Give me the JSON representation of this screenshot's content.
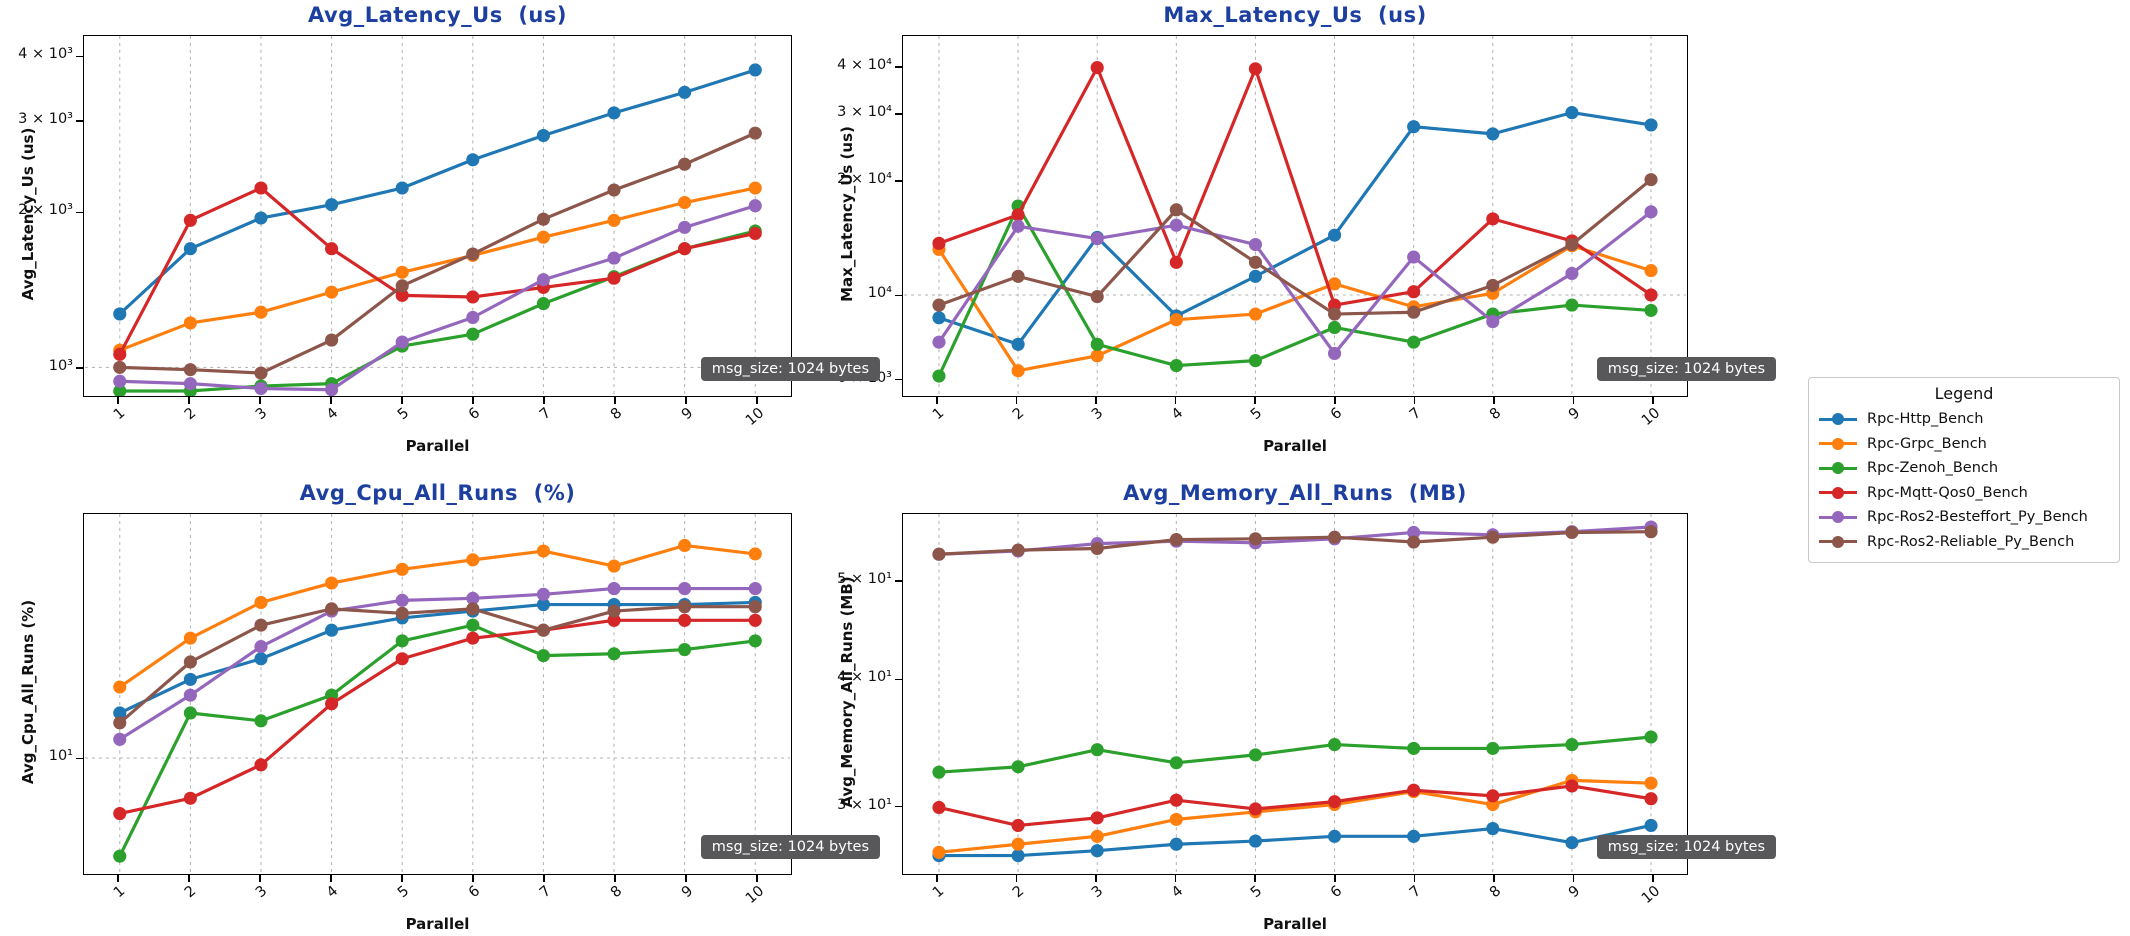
{
  "figure": {
    "background": "#ffffff",
    "title_color": "#1c3fa0"
  },
  "x_axis": {
    "label": "Parallel",
    "ticks": [
      "1",
      "2",
      "3",
      "4",
      "5",
      "6",
      "7",
      "8",
      "9",
      "10"
    ]
  },
  "annotation": {
    "text": "msg_size: 1024 bytes",
    "bg": "#58585a",
    "fg": "#ffffff"
  },
  "legend": {
    "title": "Legend",
    "entries": [
      {
        "label": "Rpc-Http_Bench",
        "color": "#1f77b4"
      },
      {
        "label": "Rpc-Grpc_Bench",
        "color": "#ff7f0e"
      },
      {
        "label": "Rpc-Zenoh_Bench",
        "color": "#2ca02c"
      },
      {
        "label": "Rpc-Mqtt-Qos0_Bench",
        "color": "#d62728"
      },
      {
        "label": "Rpc-Ros2-Besteffort_Py_Bench",
        "color": "#9467bd"
      },
      {
        "label": "Rpc-Ros2-Reliable_Py_Bench",
        "color": "#8c564b"
      }
    ]
  },
  "chart_data": [
    {
      "type": "line",
      "title": "Avg_Latency_Us  (us)",
      "ylabel": "Avg_Latency_Us (us)",
      "xlabel": "Parallel",
      "annotation": "msg_size: 1024 bytes",
      "yscale": "log",
      "ylim": [
        880,
        4400
      ],
      "grid": "x-major and decade y, dashed",
      "yticks": [
        {
          "value": 4000,
          "label": "4 × 10³",
          "grid": false
        },
        {
          "value": 3000,
          "label": "3 × 10³",
          "grid": false
        },
        {
          "value": 2000,
          "label": "2 × 10³",
          "grid": false
        },
        {
          "value": 1000,
          "label": "10³",
          "grid": true
        }
      ],
      "x": [
        1,
        2,
        3,
        4,
        5,
        6,
        7,
        8,
        9,
        10
      ],
      "series": [
        {
          "name": "Rpc-Http_Bench",
          "color": "#1f77b4",
          "values": [
            1270,
            1700,
            1950,
            2070,
            2230,
            2530,
            2820,
            3120,
            3420,
            3780
          ]
        },
        {
          "name": "Rpc-Grpc_Bench",
          "color": "#ff7f0e",
          "values": [
            1080,
            1220,
            1280,
            1400,
            1530,
            1650,
            1790,
            1930,
            2090,
            2230
          ]
        },
        {
          "name": "Rpc-Zenoh_Bench",
          "color": "#2ca02c",
          "values": [
            900,
            900,
            920,
            930,
            1100,
            1160,
            1330,
            1500,
            1700,
            1840
          ]
        },
        {
          "name": "Rpc-Mqtt-Qos0_Bench",
          "color": "#d62728",
          "values": [
            1060,
            1930,
            2230,
            1700,
            1380,
            1370,
            1430,
            1490,
            1700,
            1820
          ]
        },
        {
          "name": "Rpc-Ros2-Besteffort_Py_Bench",
          "color": "#9467bd",
          "values": [
            940,
            930,
            910,
            905,
            1120,
            1250,
            1480,
            1630,
            1870,
            2060
          ]
        },
        {
          "name": "Rpc-Ros2-Reliable_Py_Bench",
          "color": "#8c564b",
          "values": [
            1000,
            990,
            975,
            1130,
            1440,
            1660,
            1940,
            2210,
            2480,
            2850
          ]
        }
      ]
    },
    {
      "type": "line",
      "title": "Max_Latency_Us  (us)",
      "ylabel": "Max_Latency_Us (us)",
      "xlabel": "Parallel",
      "annotation": "msg_size: 1024 bytes",
      "yscale": "log",
      "ylim": [
        5400,
        48500
      ],
      "grid": "x-major and decade y, dashed",
      "yticks": [
        {
          "value": 40000,
          "label": "4 × 10⁴",
          "grid": false
        },
        {
          "value": 30000,
          "label": "3 × 10⁴",
          "grid": false
        },
        {
          "value": 20000,
          "label": "2 × 10⁴",
          "grid": false
        },
        {
          "value": 10000,
          "label": "10⁴",
          "grid": true
        },
        {
          "value": 6000,
          "label": "6 × 10³",
          "grid": false
        }
      ],
      "x": [
        1,
        2,
        3,
        4,
        5,
        6,
        7,
        8,
        9,
        10
      ],
      "series": [
        {
          "name": "Rpc-Http_Bench",
          "color": "#1f77b4",
          "values": [
            8700,
            7400,
            14200,
            8800,
            11200,
            14400,
            27900,
            26700,
            30400,
            28200
          ]
        },
        {
          "name": "Rpc-Grpc_Bench",
          "color": "#ff7f0e",
          "values": [
            13200,
            6300,
            6900,
            8600,
            8900,
            10700,
            9300,
            10100,
            13500,
            11600
          ]
        },
        {
          "name": "Rpc-Zenoh_Bench",
          "color": "#2ca02c",
          "values": [
            6100,
            17200,
            7400,
            6500,
            6700,
            8200,
            7500,
            8900,
            9400,
            9100
          ]
        },
        {
          "name": "Rpc-Mqtt-Qos0_Bench",
          "color": "#d62728",
          "values": [
            13700,
            16300,
            40000,
            12200,
            39700,
            9400,
            10200,
            15900,
            13900,
            10000
          ]
        },
        {
          "name": "Rpc-Ros2-Besteffort_Py_Bench",
          "color": "#9467bd",
          "values": [
            7500,
            15200,
            14100,
            15300,
            13600,
            7000,
            12600,
            8500,
            11400,
            16600
          ]
        },
        {
          "name": "Rpc-Ros2-Reliable_Py_Bench",
          "color": "#8c564b",
          "values": [
            9400,
            11200,
            9900,
            16800,
            12200,
            8900,
            9000,
            10600,
            13600,
            20200
          ]
        }
      ]
    },
    {
      "type": "line",
      "title": "Avg_Cpu_All_Runs  (%)",
      "ylabel": "Avg_Cpu_All_Runs (%)",
      "xlabel": "Parallel",
      "annotation": "msg_size: 1024 bytes",
      "yscale": "log",
      "ylim": [
        4.2,
        62
      ],
      "grid": "x-major and decade y, dashed",
      "yticks": [
        {
          "value": 10,
          "label": "10¹",
          "grid": true
        }
      ],
      "x": [
        1,
        2,
        3,
        4,
        5,
        6,
        7,
        8,
        9,
        10
      ],
      "series": [
        {
          "name": "Rpc-Http_Bench",
          "color": "#1f77b4",
          "values": [
            14,
            18,
            21,
            26,
            28.5,
            30,
            31.5,
            31.5,
            31.5,
            32
          ]
        },
        {
          "name": "Rpc-Grpc_Bench",
          "color": "#ff7f0e",
          "values": [
            17,
            24.5,
            32,
            37,
            41,
            44,
            47,
            42,
            49,
            46
          ]
        },
        {
          "name": "Rpc-Zenoh_Bench",
          "color": "#2ca02c",
          "values": [
            4.8,
            14,
            13.2,
            16,
            24,
            27,
            21.5,
            21.8,
            22.5,
            24
          ]
        },
        {
          "name": "Rpc-Mqtt-Qos0_Bench",
          "color": "#d62728",
          "values": [
            6.6,
            7.4,
            9.5,
            15,
            21,
            24.5,
            26,
            28,
            28,
            28
          ]
        },
        {
          "name": "Rpc-Ros2-Besteffort_Py_Bench",
          "color": "#9467bd",
          "values": [
            11.5,
            16,
            23,
            30,
            32.5,
            33,
            34,
            35.5,
            35.5,
            35.5
          ]
        },
        {
          "name": "Rpc-Ros2-Reliable_Py_Bench",
          "color": "#8c564b",
          "values": [
            13,
            20.5,
            27,
            30.5,
            29.5,
            30.5,
            26,
            30,
            31,
            31
          ]
        }
      ]
    },
    {
      "type": "line",
      "title": "Avg_Memory_All_Runs  (MB)",
      "ylabel": "Avg_Memory_All_Runs (MB)",
      "xlabel": "Parallel",
      "annotation": "msg_size: 1024 bytes",
      "yscale": "log",
      "ylim": [
        25.7,
        58.3
      ],
      "grid": "x-major dashed only",
      "yticks": [
        {
          "value": 50,
          "label": "5 × 10¹",
          "grid": false
        },
        {
          "value": 40,
          "label": "4 × 10¹",
          "grid": false
        },
        {
          "value": 30,
          "label": "3 × 10¹",
          "grid": false
        }
      ],
      "x": [
        1,
        2,
        3,
        4,
        5,
        6,
        7,
        8,
        9,
        10
      ],
      "series": [
        {
          "name": "Rpc-Http_Bench",
          "color": "#1f77b4",
          "values": [
            26.8,
            26.8,
            27.1,
            27.5,
            27.7,
            28.0,
            28.0,
            28.5,
            27.6,
            28.7
          ]
        },
        {
          "name": "Rpc-Grpc_Bench",
          "color": "#ff7f0e",
          "values": [
            27.0,
            27.5,
            28.0,
            29.1,
            29.6,
            30.1,
            31.0,
            30.1,
            31.8,
            31.6
          ]
        },
        {
          "name": "Rpc-Zenoh_Bench",
          "color": "#2ca02c",
          "values": [
            32.4,
            32.8,
            34.1,
            33.1,
            33.7,
            34.5,
            34.2,
            34.2,
            34.5,
            35.1
          ]
        },
        {
          "name": "Rpc-Mqtt-Qos0_Bench",
          "color": "#d62728",
          "values": [
            29.9,
            28.7,
            29.2,
            30.4,
            29.8,
            30.3,
            31.1,
            30.7,
            31.4,
            30.5
          ]
        },
        {
          "name": "Rpc-Ros2-Besteffort_Py_Bench",
          "color": "#9467bd",
          "values": [
            53.2,
            53.6,
            54.5,
            54.8,
            54.6,
            55.1,
            55.9,
            55.6,
            56.0,
            56.6
          ]
        },
        {
          "name": "Rpc-Ros2-Reliable_Py_Bench",
          "color": "#8c564b",
          "values": [
            53.2,
            53.7,
            53.9,
            55.0,
            55.1,
            55.3,
            54.7,
            55.3,
            55.9,
            56.0
          ]
        }
      ]
    }
  ]
}
